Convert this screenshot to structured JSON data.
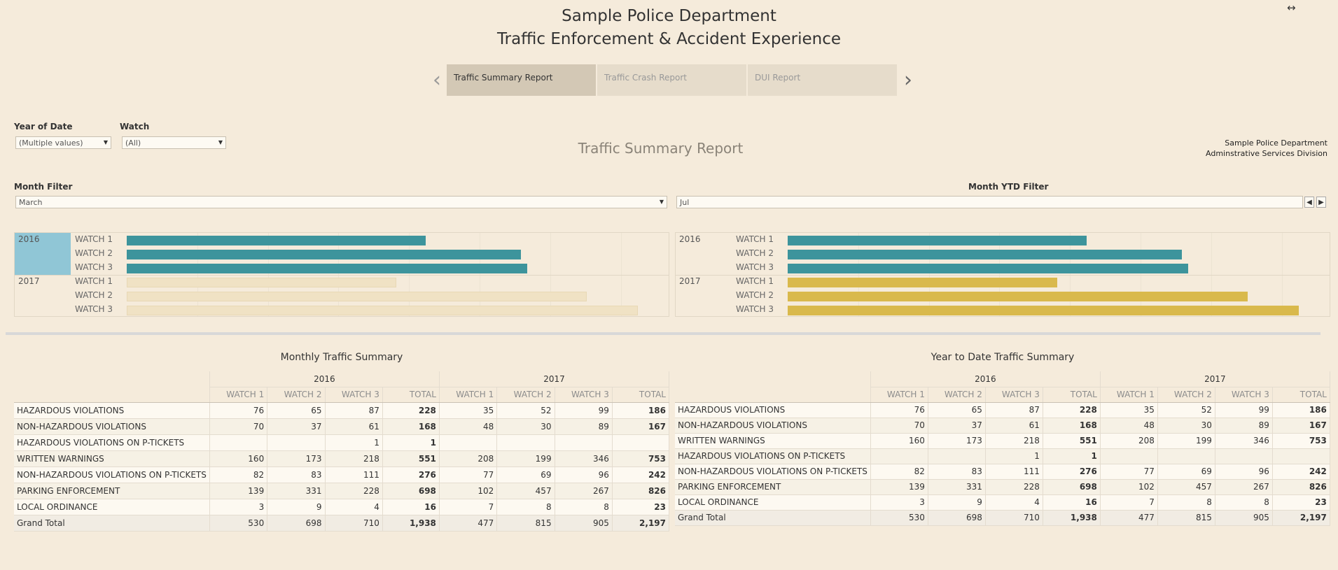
{
  "header": {
    "title_line1": "Sample Police Department",
    "title_line2": "Traffic Enforcement & Accident Experience"
  },
  "icons": {
    "expand": "↔",
    "prev": "‹",
    "next": "›"
  },
  "tabs": [
    {
      "label": "Traffic Summary Report",
      "active": true
    },
    {
      "label": "Traffic Crash Report",
      "active": false
    },
    {
      "label": "DUI Report",
      "active": false
    }
  ],
  "filters": {
    "year_label": "Year of Date",
    "year_value": "(Multiple values)",
    "watch_label": "Watch",
    "watch_value": "(All)",
    "month_label": "Month Filter",
    "month_value": "March",
    "ytd_label": "Month YTD Filter",
    "ytd_value": "Jul"
  },
  "report_title": "Traffic Summary Report",
  "dept_info": {
    "line1": "Sample Police Department",
    "line2": "Adminstrative Services Division"
  },
  "colors": {
    "teal": "#3d949c",
    "gold": "#d9b94c",
    "faded": "#f0e2c4",
    "highlight": "#90c6d6"
  },
  "chart_data": [
    {
      "type": "bar",
      "orientation": "horizontal",
      "name": "monthly",
      "groups": [
        "2016",
        "2017"
      ],
      "categories": [
        "WATCH 1",
        "WATCH 2",
        "WATCH 3"
      ],
      "series": [
        {
          "name": "2016",
          "values": [
            530,
            698,
            710
          ]
        },
        {
          "name": "2017",
          "values": [
            477,
            815,
            905
          ]
        }
      ],
      "xlim": [
        0,
        950
      ],
      "selected_group": "2016"
    },
    {
      "type": "bar",
      "orientation": "horizontal",
      "name": "ytd",
      "groups": [
        "2016",
        "2017"
      ],
      "categories": [
        "WATCH 1",
        "WATCH 2",
        "WATCH 3"
      ],
      "series": [
        {
          "name": "2016",
          "values": [
            530,
            698,
            710
          ]
        },
        {
          "name": "2017",
          "values": [
            477,
            815,
            905
          ]
        }
      ],
      "xlim": [
        0,
        950
      ]
    }
  ],
  "monthly": {
    "title": "Monthly Traffic Summary",
    "years": [
      "2016",
      "2017"
    ],
    "cols": [
      "WATCH 1",
      "WATCH 2",
      "WATCH 3",
      "TOTAL",
      "WATCH 1",
      "WATCH 2",
      "WATCH 3",
      "TOTAL"
    ],
    "rows": [
      {
        "label": "HAZARDOUS VIOLATIONS",
        "values": [
          "76",
          "65",
          "87",
          "228",
          "35",
          "52",
          "99",
          "186"
        ]
      },
      {
        "label": "NON-HAZARDOUS VIOLATIONS",
        "values": [
          "70",
          "37",
          "61",
          "168",
          "48",
          "30",
          "89",
          "167"
        ]
      },
      {
        "label": "HAZARDOUS VIOLATIONS ON P-TICKETS",
        "values": [
          "",
          "",
          "1",
          "1",
          "",
          "",
          "",
          ""
        ]
      },
      {
        "label": "WRITTEN WARNINGS",
        "values": [
          "160",
          "173",
          "218",
          "551",
          "208",
          "199",
          "346",
          "753"
        ]
      },
      {
        "label": "NON-HAZARDOUS VIOLATIONS ON P-TICKETS",
        "values": [
          "82",
          "83",
          "111",
          "276",
          "77",
          "69",
          "96",
          "242"
        ]
      },
      {
        "label": "PARKING ENFORCEMENT",
        "values": [
          "139",
          "331",
          "228",
          "698",
          "102",
          "457",
          "267",
          "826"
        ]
      },
      {
        "label": "LOCAL ORDINANCE",
        "values": [
          "3",
          "9",
          "4",
          "16",
          "7",
          "8",
          "8",
          "23"
        ]
      },
      {
        "label": "Grand Total",
        "values": [
          "530",
          "698",
          "710",
          "1,938",
          "477",
          "815",
          "905",
          "2,197"
        ]
      }
    ]
  },
  "ytd": {
    "title": "Year to Date Traffic Summary",
    "years": [
      "2016",
      "2017"
    ],
    "cols": [
      "WATCH 1",
      "WATCH 2",
      "WATCH 3",
      "TOTAL",
      "WATCH 1",
      "WATCH 2",
      "WATCH 3",
      "TOTAL"
    ],
    "rows": [
      {
        "label": "HAZARDOUS VIOLATIONS",
        "values": [
          "76",
          "65",
          "87",
          "228",
          "35",
          "52",
          "99",
          "186"
        ]
      },
      {
        "label": "NON-HAZARDOUS VIOLATIONS",
        "values": [
          "70",
          "37",
          "61",
          "168",
          "48",
          "30",
          "89",
          "167"
        ]
      },
      {
        "label": "WRITTEN WARNINGS",
        "values": [
          "160",
          "173",
          "218",
          "551",
          "208",
          "199",
          "346",
          "753"
        ]
      },
      {
        "label": "HAZARDOUS VIOLATIONS ON P-TICKETS",
        "values": [
          "",
          "",
          "1",
          "1",
          "",
          "",
          "",
          ""
        ]
      },
      {
        "label": "NON-HAZARDOUS VIOLATIONS ON P-TICKETS",
        "values": [
          "82",
          "83",
          "111",
          "276",
          "77",
          "69",
          "96",
          "242"
        ]
      },
      {
        "label": "PARKING ENFORCEMENT",
        "values": [
          "139",
          "331",
          "228",
          "698",
          "102",
          "457",
          "267",
          "826"
        ]
      },
      {
        "label": "LOCAL ORDINANCE",
        "values": [
          "3",
          "9",
          "4",
          "16",
          "7",
          "8",
          "8",
          "23"
        ]
      },
      {
        "label": "Grand Total",
        "values": [
          "530",
          "698",
          "710",
          "1,938",
          "477",
          "815",
          "905",
          "2,197"
        ]
      }
    ]
  }
}
